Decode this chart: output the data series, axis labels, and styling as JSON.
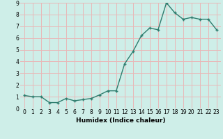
{
  "x": [
    0,
    1,
    2,
    3,
    4,
    5,
    6,
    7,
    8,
    9,
    10,
    11,
    12,
    13,
    14,
    15,
    16,
    17,
    18,
    19,
    20,
    21,
    22,
    23
  ],
  "y": [
    1.1,
    1.0,
    1.0,
    0.5,
    0.5,
    0.85,
    0.65,
    0.75,
    0.85,
    1.15,
    1.5,
    1.5,
    3.8,
    4.85,
    6.2,
    6.85,
    6.7,
    9.0,
    8.15,
    7.6,
    7.75,
    7.6,
    7.6,
    6.7
  ],
  "line_color": "#2e7d6e",
  "marker": "+",
  "marker_size": 3,
  "xlabel": "Humidex (Indice chaleur)",
  "xlim": [
    -0.5,
    23.5
  ],
  "ylim": [
    0,
    9
  ],
  "yticks": [
    0,
    1,
    2,
    3,
    4,
    5,
    6,
    7,
    8,
    9
  ],
  "xticks": [
    0,
    1,
    2,
    3,
    4,
    5,
    6,
    7,
    8,
    9,
    10,
    11,
    12,
    13,
    14,
    15,
    16,
    17,
    18,
    19,
    20,
    21,
    22,
    23
  ],
  "bg_color": "#ceeee8",
  "grid_color": "#e8b8b8",
  "tick_label_fontsize": 5.5,
  "xlabel_fontsize": 6.5,
  "line_width": 1.0
}
